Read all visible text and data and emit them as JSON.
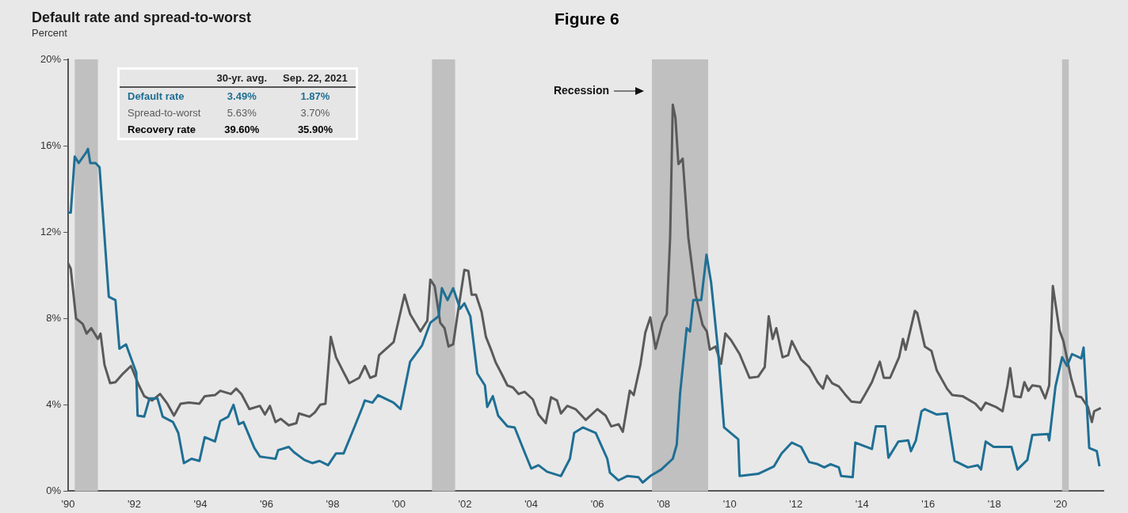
{
  "chart_data": {
    "type": "line",
    "title": "Default rate and spread-to-worst",
    "ylabel": "Percent",
    "xlim": [
      1990,
      2021.3
    ],
    "xticks": [
      {
        "value": 1990,
        "label": "'90"
      },
      {
        "value": 1992,
        "label": "'92"
      },
      {
        "value": 1994,
        "label": "'94"
      },
      {
        "value": 1996,
        "label": "'96"
      },
      {
        "value": 1998,
        "label": "'98"
      },
      {
        "value": 2000,
        "label": "'00"
      },
      {
        "value": 2002,
        "label": "'02"
      },
      {
        "value": 2004,
        "label": "'04"
      },
      {
        "value": 2006,
        "label": "'06"
      },
      {
        "value": 2008,
        "label": "'08"
      },
      {
        "value": 2010,
        "label": "'10"
      },
      {
        "value": 2012,
        "label": "'12"
      },
      {
        "value": 2014,
        "label": "'14"
      },
      {
        "value": 2016,
        "label": "'16"
      },
      {
        "value": 2018,
        "label": "'18"
      },
      {
        "value": 2020,
        "label": "'20"
      }
    ],
    "ylim": [
      0,
      20
    ],
    "yticks": [
      {
        "value": 0,
        "label": "0%"
      },
      {
        "value": 4,
        "label": "4%"
      },
      {
        "value": 8,
        "label": "8%"
      },
      {
        "value": 12,
        "label": "12%"
      },
      {
        "value": 16,
        "label": "16%"
      },
      {
        "value": 20,
        "label": "20%"
      }
    ],
    "legend": "top left",
    "series": [
      {
        "name": "Default rate",
        "color": "#1f6f94",
        "x": [
          1990.0,
          1990.08,
          1990.2,
          1990.32,
          1990.55,
          1990.6,
          1990.67,
          1990.83,
          1990.95,
          1991.23,
          1991.43,
          1991.55,
          1991.75,
          1992.06,
          1992.1,
          1992.3,
          1992.46,
          1992.7,
          1992.86,
          1993.17,
          1993.33,
          1993.5,
          1993.73,
          1993.97,
          1994.13,
          1994.44,
          1994.6,
          1994.84,
          1995.0,
          1995.16,
          1995.3,
          1995.63,
          1995.8,
          1996.03,
          1996.27,
          1996.35,
          1996.67,
          1996.83,
          1997.14,
          1997.38,
          1997.6,
          1997.86,
          1998.1,
          1998.33,
          1998.65,
          1998.9,
          1998.97,
          1999.2,
          1999.37,
          1999.84,
          2000.05,
          2000.34,
          2000.7,
          2000.95,
          2001.2,
          2001.3,
          2001.47,
          2001.64,
          2001.85,
          2001.98,
          2002.16,
          2002.37,
          2002.6,
          2002.67,
          2002.84,
          2003.0,
          2003.28,
          2003.5,
          2003.8,
          2004.0,
          2004.22,
          2004.48,
          2004.9,
          2005.17,
          2005.3,
          2005.56,
          2005.95,
          2006.3,
          2006.38,
          2006.64,
          2006.9,
          2007.24,
          2007.37,
          2007.6,
          2007.93,
          2008.28,
          2008.4,
          2008.5,
          2008.7,
          2008.8,
          2008.9,
          2009.14,
          2009.3,
          2009.44,
          2009.65,
          2009.83,
          2010.26,
          2010.3,
          2010.86,
          2011.34,
          2011.57,
          2011.88,
          2012.16,
          2012.4,
          2012.66,
          2012.86,
          2013.05,
          2013.3,
          2013.37,
          2013.72,
          2013.8,
          2014.3,
          2014.42,
          2014.7,
          2014.8,
          2015.1,
          2015.4,
          2015.48,
          2015.63,
          2015.8,
          2015.9,
          2016.26,
          2016.57,
          2016.8,
          2017.2,
          2017.5,
          2017.6,
          2017.74,
          2017.98,
          2018.52,
          2018.7,
          2019.0,
          2019.15,
          2019.62,
          2019.66,
          2019.85,
          2020.05,
          2020.2,
          2020.35,
          2020.63,
          2020.7,
          2020.87,
          2021.1,
          2021.18
        ],
        "values": [
          12.9,
          12.9,
          15.5,
          15.2,
          15.7,
          15.85,
          15.2,
          15.2,
          15.0,
          9.0,
          8.85,
          6.6,
          6.8,
          5.5,
          3.5,
          3.45,
          4.3,
          4.3,
          3.45,
          3.2,
          2.7,
          1.3,
          1.5,
          1.4,
          2.5,
          2.3,
          3.25,
          3.45,
          4.0,
          3.1,
          3.2,
          2.0,
          1.6,
          1.55,
          1.5,
          1.9,
          2.05,
          1.8,
          1.45,
          1.3,
          1.4,
          1.2,
          1.75,
          1.75,
          2.95,
          3.9,
          4.2,
          4.1,
          4.45,
          4.1,
          3.8,
          6.0,
          6.75,
          7.8,
          8.1,
          9.4,
          8.85,
          9.4,
          8.45,
          8.7,
          8.1,
          5.45,
          4.9,
          3.9,
          4.4,
          3.5,
          3.0,
          2.95,
          1.8,
          1.05,
          1.2,
          0.9,
          0.7,
          1.5,
          2.7,
          2.95,
          2.7,
          1.5,
          0.85,
          0.5,
          0.7,
          0.65,
          0.4,
          0.7,
          1.0,
          1.5,
          2.15,
          4.5,
          7.55,
          7.4,
          8.85,
          8.85,
          10.95,
          9.65,
          6.5,
          2.95,
          2.4,
          0.7,
          0.8,
          1.15,
          1.75,
          2.25,
          2.05,
          1.35,
          1.25,
          1.1,
          1.25,
          1.1,
          0.7,
          0.65,
          2.25,
          1.95,
          3.0,
          3.0,
          1.55,
          2.3,
          2.35,
          1.85,
          2.35,
          3.7,
          3.8,
          3.55,
          3.6,
          1.4,
          1.1,
          1.2,
          1.0,
          2.3,
          2.05,
          2.05,
          1.0,
          1.45,
          2.6,
          2.65,
          2.35,
          4.85,
          6.2,
          5.8,
          6.35,
          6.15,
          6.65,
          2.0,
          1.85,
          1.15
        ]
      },
      {
        "name": "Spread-to-worst",
        "color": "#5a5a5a",
        "x": [
          1990.0,
          1990.08,
          1990.24,
          1990.44,
          1990.56,
          1990.7,
          1990.9,
          1990.98,
          1991.1,
          1991.27,
          1991.43,
          1991.63,
          1991.9,
          1992.14,
          1992.3,
          1992.54,
          1992.78,
          1993.0,
          1993.2,
          1993.4,
          1993.65,
          1993.97,
          1994.13,
          1994.44,
          1994.6,
          1994.92,
          1995.08,
          1995.24,
          1995.48,
          1995.8,
          1995.95,
          1996.1,
          1996.27,
          1996.43,
          1996.67,
          1996.9,
          1996.98,
          1997.3,
          1997.46,
          1997.62,
          1997.78,
          1997.94,
          1998.1,
          1998.33,
          1998.5,
          1998.8,
          1998.97,
          1999.13,
          1999.3,
          1999.4,
          1999.84,
          2000.17,
          2000.34,
          2000.65,
          2000.86,
          2000.95,
          2001.08,
          2001.25,
          2001.38,
          2001.5,
          2001.64,
          2001.8,
          2001.98,
          2002.1,
          2002.2,
          2002.33,
          2002.5,
          2002.63,
          2002.8,
          2002.93,
          2003.1,
          2003.28,
          2003.45,
          2003.62,
          2003.8,
          2004.05,
          2004.22,
          2004.44,
          2004.6,
          2004.78,
          2004.9,
          2005.09,
          2005.34,
          2005.65,
          2006.0,
          2006.25,
          2006.42,
          2006.64,
          2006.77,
          2006.98,
          2007.1,
          2007.3,
          2007.45,
          2007.6,
          2007.76,
          2007.97,
          2008.1,
          2008.2,
          2008.28,
          2008.36,
          2008.45,
          2008.58,
          2008.75,
          2008.97,
          2009.18,
          2009.31,
          2009.4,
          2009.57,
          2009.74,
          2009.87,
          2010.04,
          2010.3,
          2010.6,
          2010.86,
          2011.06,
          2011.18,
          2011.3,
          2011.41,
          2011.6,
          2011.77,
          2011.88,
          2012.16,
          2012.4,
          2012.66,
          2012.82,
          2012.94,
          2013.1,
          2013.3,
          2013.48,
          2013.68,
          2013.95,
          2014.1,
          2014.3,
          2014.54,
          2014.66,
          2014.85,
          2015.12,
          2015.24,
          2015.32,
          2015.6,
          2015.67,
          2015.9,
          2016.1,
          2016.26,
          2016.57,
          2016.73,
          2017.04,
          2017.43,
          2017.6,
          2017.74,
          2018.05,
          2018.25,
          2018.4,
          2018.48,
          2018.6,
          2018.8,
          2018.91,
          2019.03,
          2019.15,
          2019.38,
          2019.54,
          2019.66,
          2019.77,
          2019.97,
          2020.09,
          2020.32,
          2020.48,
          2020.63,
          2020.83,
          2020.95,
          2021.02,
          2021.22
        ],
        "values": [
          10.55,
          10.3,
          8.0,
          7.75,
          7.3,
          7.55,
          7.05,
          7.3,
          5.85,
          5.0,
          5.05,
          5.4,
          5.8,
          4.9,
          4.4,
          4.2,
          4.5,
          4.05,
          3.5,
          4.05,
          4.1,
          4.05,
          4.4,
          4.45,
          4.65,
          4.5,
          4.75,
          4.5,
          3.8,
          3.95,
          3.55,
          3.95,
          3.2,
          3.35,
          3.05,
          3.15,
          3.6,
          3.45,
          3.65,
          4.0,
          4.05,
          7.15,
          6.2,
          5.5,
          5.0,
          5.25,
          5.8,
          5.25,
          5.35,
          6.3,
          6.9,
          9.1,
          8.2,
          7.4,
          7.9,
          9.8,
          9.5,
          7.8,
          7.55,
          6.7,
          6.8,
          8.45,
          10.25,
          10.2,
          9.1,
          9.1,
          8.3,
          7.15,
          6.5,
          5.95,
          5.45,
          4.9,
          4.8,
          4.5,
          4.6,
          4.25,
          3.55,
          3.15,
          4.35,
          4.2,
          3.6,
          3.95,
          3.8,
          3.3,
          3.8,
          3.5,
          3.0,
          3.1,
          2.75,
          4.65,
          4.45,
          5.85,
          7.35,
          8.05,
          6.6,
          7.8,
          8.2,
          11.75,
          17.9,
          17.3,
          15.15,
          15.4,
          11.75,
          9.1,
          7.7,
          7.4,
          6.55,
          6.7,
          5.9,
          7.3,
          7.0,
          6.35,
          5.25,
          5.3,
          5.75,
          8.1,
          7.05,
          7.55,
          6.2,
          6.3,
          6.95,
          6.1,
          5.75,
          5.05,
          4.75,
          5.35,
          5.0,
          4.85,
          4.5,
          4.15,
          4.1,
          4.5,
          5.05,
          6.0,
          5.25,
          5.25,
          6.2,
          7.05,
          6.55,
          8.35,
          8.25,
          6.7,
          6.5,
          5.6,
          4.75,
          4.45,
          4.4,
          4.05,
          3.75,
          4.1,
          3.9,
          3.7,
          4.9,
          5.7,
          4.4,
          4.35,
          5.05,
          4.65,
          4.9,
          4.85,
          4.3,
          4.9,
          9.5,
          7.45,
          6.95,
          5.25,
          4.4,
          4.35,
          3.9,
          3.2,
          3.7,
          3.85
        ]
      }
    ],
    "bands": [
      {
        "axis": "x",
        "from": 1990.2,
        "to": 1990.9,
        "color": "#c0c0c0"
      },
      {
        "axis": "x",
        "from": 2001.0,
        "to": 2001.7,
        "color": "#c0c0c0"
      },
      {
        "axis": "x",
        "from": 2007.65,
        "to": 2009.35,
        "color": "#c0c0c0"
      },
      {
        "axis": "x",
        "from": 2020.05,
        "to": 2020.25,
        "color": "#c0c0c0"
      }
    ],
    "annotations": [
      "30-yr. avg.",
      "Sep. 22, 2021",
      "3.49%",
      "1.87%",
      "5.63%",
      "3.70%",
      "Recovery rate",
      "39.60%",
      "35.90%",
      "Figure 6",
      "Recession"
    ]
  }
}
